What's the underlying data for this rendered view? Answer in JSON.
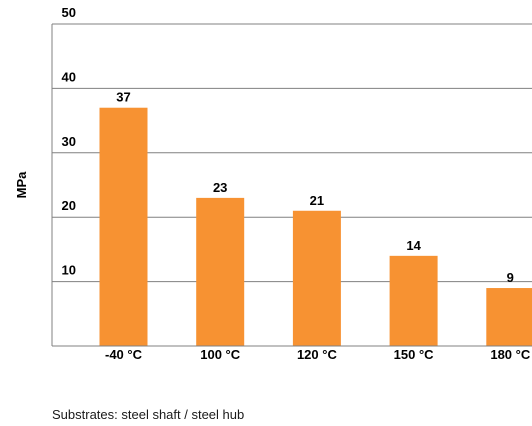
{
  "chart_data": {
    "type": "bar",
    "categories": [
      "-40 °C",
      "100 °C",
      "120 °C",
      "150 °C",
      "180 °C"
    ],
    "values": [
      37,
      23,
      21,
      14,
      9
    ],
    "ylabel": "MPa",
    "ylim": [
      0,
      50
    ],
    "yticks": [
      10,
      20,
      30,
      40,
      50
    ],
    "grid": true,
    "bar_color": "#f79232",
    "grid_color": "#808080"
  },
  "footnote": "Substrates: steel shaft / steel hub"
}
